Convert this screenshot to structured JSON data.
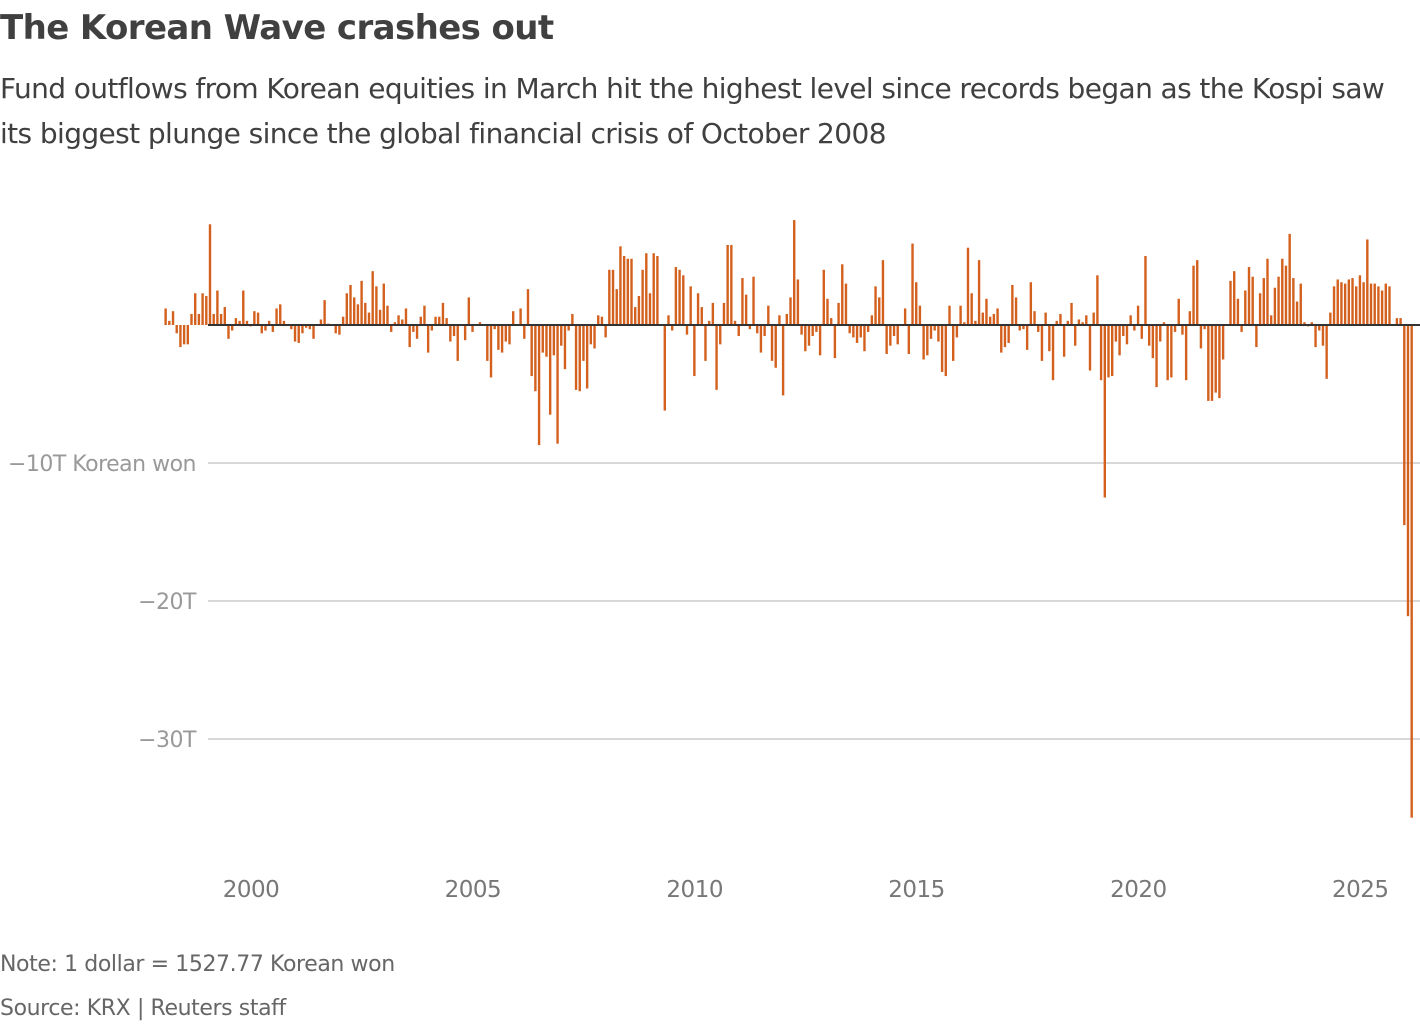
{
  "header": {
    "title": "The Korean Wave crashes out",
    "subtitle": "Fund outflows from Korean equities in March hit the highest level since records began as the Kospi saw its biggest plunge since the global financial crisis of October 2008"
  },
  "footer": {
    "note": "Note: 1 dollar = 1527.77 Korean won",
    "source": "Source: KRX | Reuters staff"
  },
  "colors": {
    "bar": "#d4601e",
    "zero_line": "#333333",
    "grid": "#cccccc",
    "tick_label": "#999999",
    "x_tick_label": "#777777"
  },
  "chart_data": {
    "type": "bar",
    "title": "The Korean Wave crashes out",
    "xlabel": "",
    "ylabel": "Korean won (trillions)",
    "unit": "T Korean won",
    "frequency": "monthly",
    "start": "1999-01",
    "end": "2026-03",
    "ylim": [
      -38,
      8
    ],
    "grid": true,
    "y_ticks": [
      {
        "value": -10,
        "label": "−10T Korean won"
      },
      {
        "value": -20,
        "label": "−20T"
      },
      {
        "value": -30,
        "label": "−30T"
      }
    ],
    "x_ticks": [
      {
        "value": 2000,
        "label": "2000"
      },
      {
        "value": 2005,
        "label": "2005"
      },
      {
        "value": 2010,
        "label": "2010"
      },
      {
        "value": 2015,
        "label": "2015"
      },
      {
        "value": 2020,
        "label": "2020"
      },
      {
        "value": 2025,
        "label": "2025"
      }
    ],
    "values": [
      1.2,
      0.3,
      1.0,
      -0.6,
      -1.6,
      -1.4,
      -1.4,
      0.8,
      2.3,
      0.8,
      2.3,
      2.1,
      7.3,
      0.8,
      2.5,
      0.8,
      1.3,
      -1.0,
      -0.4,
      0.5,
      0.3,
      2.5,
      0.3,
      -0.1,
      1.0,
      0.9,
      -0.6,
      -0.4,
      0.3,
      -0.5,
      1.2,
      1.5,
      0.3,
      0.0,
      -0.3,
      -1.2,
      -1.3,
      -0.6,
      -0.2,
      -0.3,
      -1.0,
      0.0,
      0.4,
      1.8,
      0.1,
      0.0,
      -0.6,
      -0.7,
      0.6,
      2.3,
      2.9,
      2.0,
      1.5,
      3.2,
      1.6,
      0.9,
      3.9,
      2.8,
      1.1,
      3.0,
      1.4,
      -0.5,
      0.2,
      0.7,
      0.4,
      1.2,
      -1.6,
      -0.5,
      -1.0,
      0.6,
      1.4,
      -2.0,
      -0.4,
      0.6,
      0.6,
      1.6,
      0.5,
      -1.2,
      -0.8,
      -2.6,
      0.0,
      -1.1,
      2.0,
      -0.5,
      0.0,
      0.2,
      0.0,
      -2.6,
      -3.8,
      -0.3,
      -1.8,
      -2.0,
      -1.2,
      -1.4,
      1.0,
      0.0,
      1.2,
      -1.0,
      2.6,
      -3.7,
      -4.8,
      -8.7,
      -2.0,
      -2.3,
      -6.5,
      -2.2,
      -8.6,
      -1.5,
      -3.2,
      -0.4,
      0.8,
      -4.7,
      -4.8,
      -2.6,
      -4.6,
      -1.4,
      -1.7,
      0.7,
      0.6,
      -0.9,
      4.0,
      4.0,
      2.6,
      5.7,
      5.0,
      4.8,
      4.8,
      1.3,
      2.1,
      4.0,
      5.2,
      2.3,
      5.2,
      5.0,
      0.0,
      -6.2,
      0.7,
      -0.4,
      4.2,
      4.0,
      3.6,
      -0.7,
      2.8,
      -3.7,
      2.3,
      1.3,
      -2.6,
      0.3,
      1.6,
      -4.7,
      -1.4,
      1.6,
      5.8,
      5.8,
      0.3,
      -0.8,
      3.4,
      2.2,
      -0.3,
      3.5,
      -0.6,
      -2.0,
      -0.8,
      1.4,
      -2.6,
      -3.1,
      0.7,
      -5.1,
      0.8,
      2.0,
      7.6,
      3.3,
      -0.7,
      -1.9,
      -1.5,
      -0.8,
      -0.5,
      -2.2,
      4.0,
      1.9,
      0.5,
      -2.4,
      1.6,
      4.4,
      3.0,
      -0.6,
      -0.9,
      -1.3,
      -0.9,
      -1.9,
      -0.5,
      0.7,
      2.8,
      2.0,
      4.7,
      -2.1,
      -1.5,
      -0.8,
      -1.4,
      0.0,
      1.2,
      -2.1,
      5.9,
      3.1,
      1.4,
      -2.5,
      -2.2,
      -1.0,
      -0.4,
      -1.2,
      -3.4,
      -3.7,
      1.4,
      -2.6,
      -0.9,
      1.4,
      0.2,
      5.6,
      2.3,
      0.3,
      4.7,
      0.9,
      1.9,
      0.6,
      0.8,
      1.2,
      -2.0,
      -1.6,
      -1.3,
      2.9,
      2.0,
      -0.4,
      -0.3,
      -1.8,
      3.1,
      1.0,
      -0.5,
      -2.6,
      0.9,
      -1.9,
      -4.0,
      0.3,
      0.8,
      -2.3,
      0.3,
      1.6,
      -1.5,
      0.4,
      0.2,
      0.7,
      -3.3,
      0.9,
      3.6,
      -4.0,
      -12.5,
      -3.8,
      -3.7,
      -1.2,
      -2.2,
      -0.8,
      -1.4,
      0.7,
      -0.4,
      1.4,
      -1.0,
      5.0,
      -1.5,
      -2.4,
      -4.5,
      -1.2,
      0.2,
      -4.0,
      -3.8,
      -0.5,
      1.9,
      -0.7,
      -4.0,
      1.0,
      4.3,
      4.7,
      -1.7,
      -0.3,
      -5.5,
      -5.5,
      -4.9,
      -5.3,
      -2.5,
      0.0,
      3.2,
      3.9,
      1.9,
      -0.5,
      2.5,
      4.2,
      3.5,
      -1.6,
      2.3,
      3.4,
      4.8,
      0.7,
      2.7,
      3.5,
      4.8,
      4.3,
      6.6,
      3.4,
      1.7,
      3.0,
      0.2,
      -0.1,
      0.2,
      -1.6,
      -0.4,
      -1.5,
      -3.9,
      0.9,
      2.8,
      3.3,
      3.1,
      3.0,
      3.3,
      3.4,
      2.8,
      3.6,
      3.1,
      6.2,
      3.0,
      3.0,
      2.8,
      2.5,
      3.0,
      2.8,
      0.0,
      0.5,
      0.5,
      -14.5,
      -21.1,
      -35.7
    ]
  }
}
